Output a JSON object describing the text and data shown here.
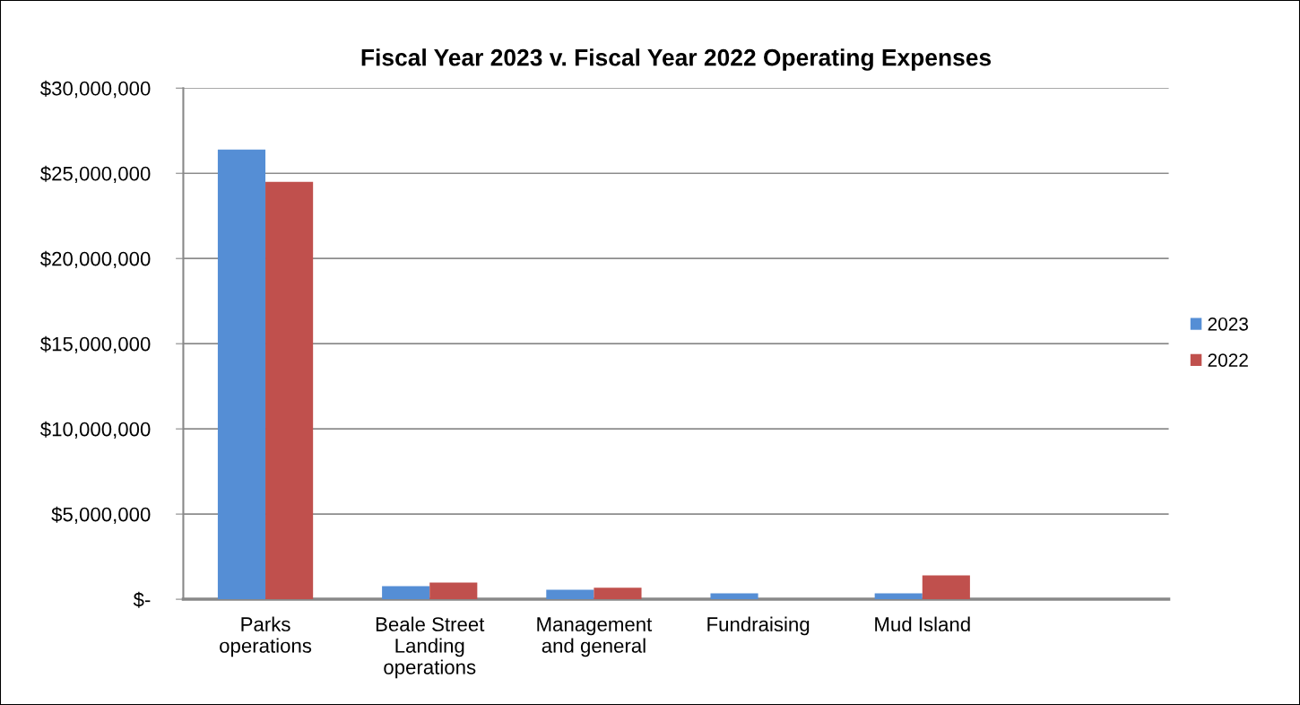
{
  "chart_data": {
    "type": "bar",
    "title": "Fiscal Year 2023 v. Fiscal Year 2022 Operating Expenses",
    "categories": [
      "Parks\noperations",
      "Beale Street\nLanding\noperations",
      "Management\nand general",
      "Fundraising",
      "Mud Island",
      null
    ],
    "series": [
      {
        "name": "2023",
        "color": "#558ed5",
        "values": [
          26400000,
          770000,
          560000,
          350000,
          350000,
          null
        ]
      },
      {
        "name": "2022",
        "color": "#c0504d",
        "values": [
          24500000,
          980000,
          670000,
          null,
          1400000,
          null
        ]
      }
    ],
    "ylim": [
      0,
      30000000
    ],
    "yticks": [
      {
        "value": 0,
        "label": "$-"
      },
      {
        "value": 5000000,
        "label": "$5,000,000"
      },
      {
        "value": 10000000,
        "label": "$10,000,000"
      },
      {
        "value": 15000000,
        "label": "$15,000,000"
      },
      {
        "value": 20000000,
        "label": "$20,000,000"
      },
      {
        "value": 25000000,
        "label": "$25,000,000"
      },
      {
        "value": 30000000,
        "label": "$30,000,000"
      }
    ],
    "grid": "y",
    "legend": "right"
  }
}
